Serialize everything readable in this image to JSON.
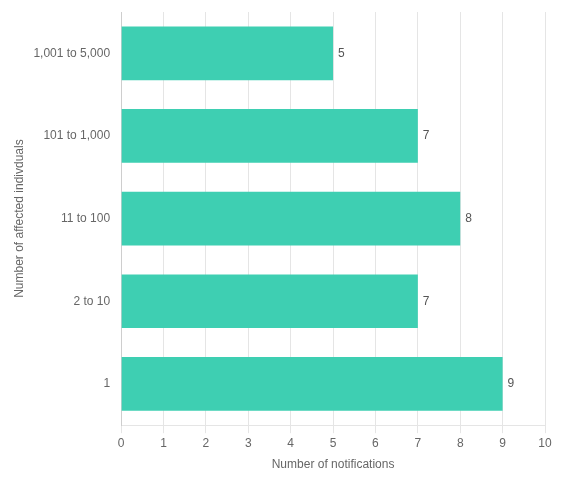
{
  "chart_data": {
    "type": "bar",
    "orientation": "horizontal",
    "categories": [
      "1",
      "2 to 10",
      "11 to 100",
      "101 to 1,000",
      "1,001 to 5,000"
    ],
    "values": [
      9,
      7,
      8,
      7,
      5
    ],
    "color": "#3ECFB2",
    "xlabel": "Number of notifications",
    "ylabel": "Number of affected indivduals",
    "xlim": [
      0,
      10
    ],
    "xticks": [
      0,
      1,
      2,
      3,
      4,
      5,
      6,
      7,
      8,
      9,
      10
    ],
    "grid": true,
    "data_labels": true
  }
}
